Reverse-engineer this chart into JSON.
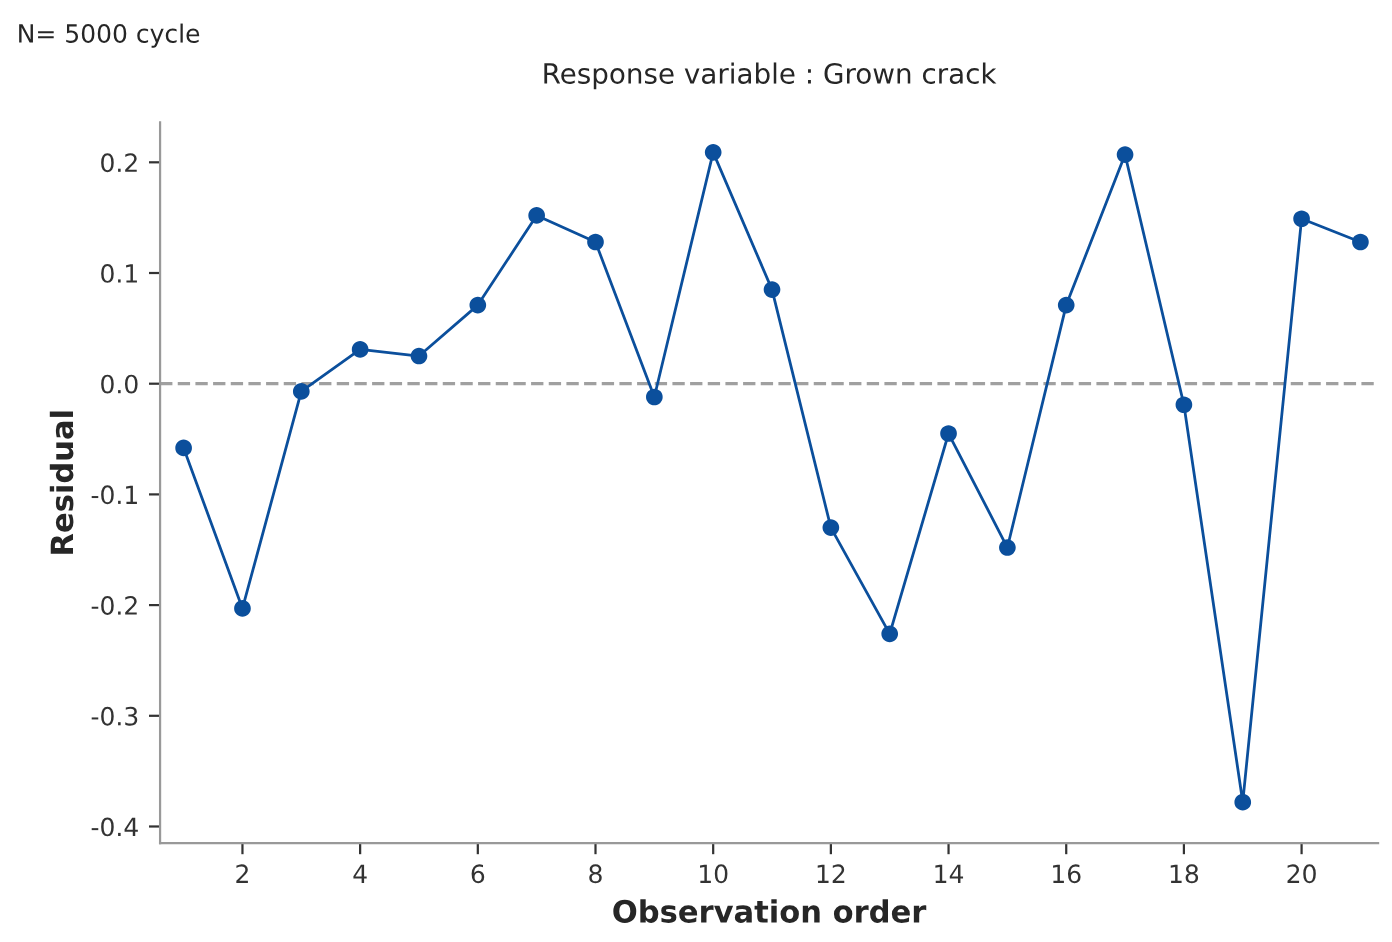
{
  "chart_data": {
    "type": "line",
    "title": "Response variable : Grown crack",
    "xlabel": "Observation order",
    "ylabel": "Residual",
    "annotations": [
      "N= 5000 cycle"
    ],
    "x": [
      1,
      2,
      3,
      4,
      5,
      6,
      7,
      8,
      9,
      10,
      11,
      12,
      13,
      14,
      15,
      16,
      17,
      18,
      19,
      20,
      21
    ],
    "series": [
      {
        "color": "#0b4f9c",
        "values": [
          -0.058,
          -0.203,
          -0.007,
          0.031,
          0.025,
          0.071,
          0.152,
          0.128,
          -0.012,
          0.209,
          0.085,
          -0.13,
          -0.226,
          -0.045,
          -0.148,
          0.071,
          0.207,
          -0.019,
          -0.378,
          0.149,
          0.128
        ]
      }
    ],
    "xlim": [
      0.6,
      21.3
    ],
    "xticks": [
      2,
      4,
      6,
      8,
      10,
      12,
      14,
      16,
      18,
      20
    ],
    "ylim": [
      -0.415,
      0.236
    ],
    "yticks": [
      {
        "value": -0.4,
        "label": "-0.4"
      },
      {
        "value": -0.3,
        "label": "-0.3"
      },
      {
        "value": -0.2,
        "label": "-0.2"
      },
      {
        "value": -0.1,
        "label": "-0.1"
      },
      {
        "value": 0.0,
        "label": "0.0"
      },
      {
        "value": 0.1,
        "label": "0.1"
      },
      {
        "value": 0.2,
        "label": "0.2"
      }
    ],
    "ref_lines": [
      {
        "axis": "y",
        "value": 0,
        "color": "#a0a0a0",
        "line_style": "dashed"
      }
    ],
    "marker": "circle",
    "line_style": "solid",
    "grid": false,
    "legend": false
  }
}
